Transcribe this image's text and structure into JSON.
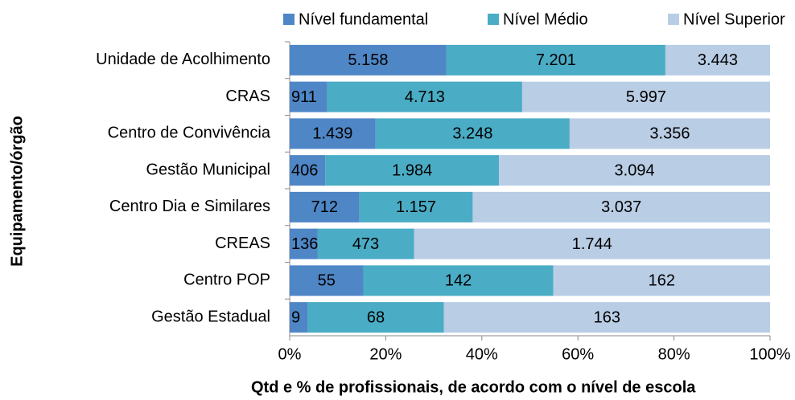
{
  "chart_data": {
    "type": "bar",
    "orientation": "horizontal",
    "stacking": "percent",
    "x_label": "Qtd e % de profissionais, de acordo com o nível de escola",
    "y_label": "Equipamento/órgão",
    "categories": [
      "Unidade de Acolhimento",
      "CRAS",
      "Centro de Convivência",
      "Gestão Municipal",
      "Centro Dia e Similares",
      "CREAS",
      "Centro POP",
      "Gestão Estadual"
    ],
    "series": [
      {
        "name": "Nível fundamental",
        "color": "#4f86c6",
        "values": [
          5158,
          911,
          1439,
          406,
          712,
          136,
          55,
          9
        ],
        "value_labels": [
          "5.158",
          "911",
          "1.439",
          "406",
          "712",
          "136",
          "55",
          "9"
        ]
      },
      {
        "name": "Nível Médio",
        "color": "#4aacc5",
        "values": [
          7201,
          4713,
          3248,
          1984,
          1157,
          473,
          142,
          68
        ],
        "value_labels": [
          "7.201",
          "4.713",
          "3.248",
          "1.984",
          "1.157",
          "473",
          "142",
          "68"
        ]
      },
      {
        "name": "Nível Superior",
        "color": "#b9cde5",
        "values": [
          3443,
          5997,
          3356,
          3094,
          3037,
          1744,
          162,
          163
        ],
        "value_labels": [
          "3.443",
          "5.997",
          "3.356",
          "3.094",
          "3.037",
          "1.744",
          "162",
          "163"
        ]
      }
    ],
    "xlim": [
      0,
      100
    ],
    "xticks": [
      {
        "value": 0,
        "label": "0%"
      },
      {
        "value": 20,
        "label": "20%"
      },
      {
        "value": 40,
        "label": "40%"
      },
      {
        "value": 60,
        "label": "60%"
      },
      {
        "value": 80,
        "label": "80%"
      },
      {
        "value": 100,
        "label": "100%"
      }
    ],
    "legend": "top"
  }
}
